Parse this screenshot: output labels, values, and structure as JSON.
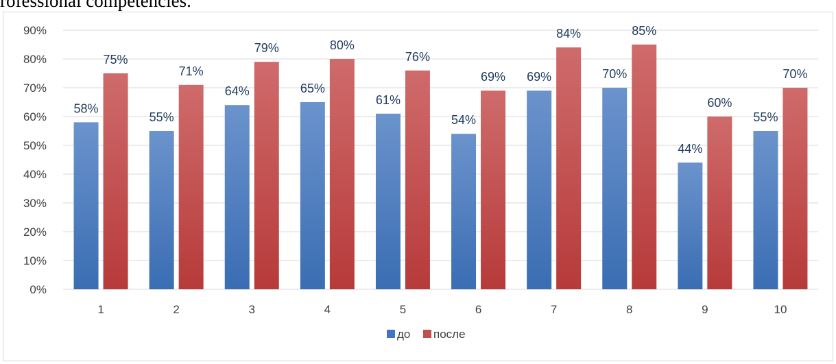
{
  "clipped_heading": "rofessional competencies.",
  "chart_data": {
    "type": "bar",
    "title": "",
    "xlabel": "",
    "ylabel": "",
    "categories": [
      "1",
      "2",
      "3",
      "4",
      "5",
      "6",
      "7",
      "8",
      "9",
      "10"
    ],
    "series": [
      {
        "name": "до",
        "values": [
          58,
          55,
          64,
          65,
          61,
          54,
          69,
          70,
          44,
          55
        ],
        "labels": [
          "58%",
          "55%",
          "64%",
          "65%",
          "61%",
          "54%",
          "69%",
          "70%",
          "44%",
          "55%"
        ],
        "color_top": "#6b93cc",
        "color_bottom": "#3a6db3",
        "legend_color": "#4472c4"
      },
      {
        "name": "после",
        "values": [
          75,
          71,
          79,
          80,
          76,
          69,
          84,
          85,
          60,
          70
        ],
        "labels": [
          "75%",
          "71%",
          "79%",
          "80%",
          "76%",
          "69%",
          "84%",
          "85%",
          "60%",
          "70%"
        ],
        "color_top": "#cf6b6b",
        "color_bottom": "#b73a3a",
        "legend_color": "#c0504d"
      }
    ],
    "ylim": [
      0,
      90
    ],
    "yticks": [
      0,
      10,
      20,
      30,
      40,
      50,
      60,
      70,
      80,
      90
    ],
    "ytick_labels": [
      "0%",
      "10%",
      "20%",
      "30%",
      "40%",
      "50%",
      "60%",
      "70%",
      "80%",
      "90%"
    ],
    "grid": true,
    "legend_position": "bottom",
    "colors": {
      "grid": "#d9d9d9",
      "axis_text": "#404040",
      "data_label_text": "#1f3a5f"
    }
  }
}
